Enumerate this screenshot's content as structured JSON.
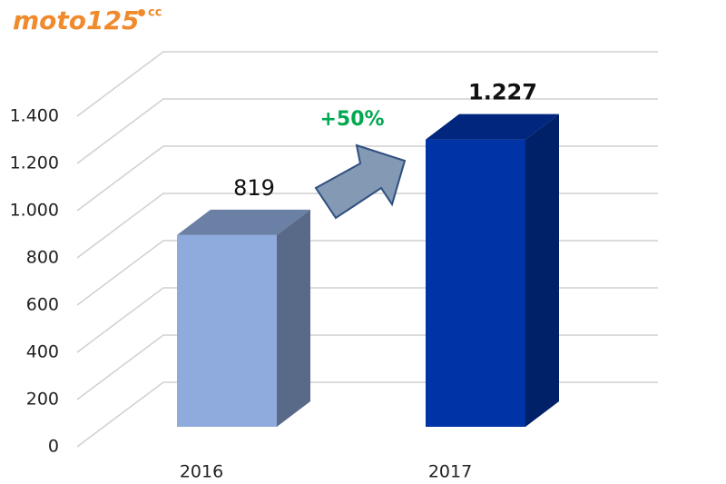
{
  "logo": {
    "text": "moto125",
    "suffix": "cc"
  },
  "chart_data": {
    "type": "bar3d",
    "categories": [
      "2016",
      "2017"
    ],
    "values": [
      819,
      1227
    ],
    "value_labels": [
      "819",
      "1.227"
    ],
    "colors": [
      "#8faadc",
      "#0033a6"
    ],
    "annotation": "+50%",
    "ylim": [
      0,
      1400
    ],
    "yticks": [
      0,
      200,
      400,
      600,
      800,
      {
        "value": 1000,
        "label": "1.000"
      },
      {
        "value": 1200,
        "label": "1.200"
      },
      {
        "value": 1400,
        "label": "1.400"
      }
    ],
    "grid": true
  }
}
